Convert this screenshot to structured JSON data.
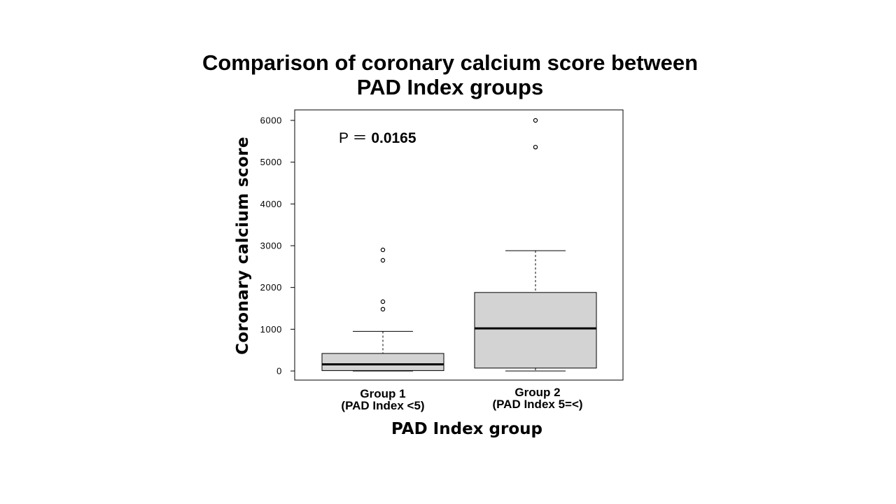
{
  "chart_data": {
    "type": "box",
    "title_lines": [
      "Comparison of coronary calcium score between",
      "PAD Index groups"
    ],
    "xlabel": "PAD Index group",
    "ylabel": "Coronary calcium score",
    "ylim": [
      -200,
      6250
    ],
    "yticks": [
      0,
      1000,
      2000,
      3000,
      4000,
      5000,
      6000
    ],
    "annotation": {
      "label": "P ＝",
      "value": "0.0165"
    },
    "groups": [
      {
        "label_line1": "Group 1",
        "label_line2": "(PAD Index <5)",
        "whisker_low": 0,
        "q1": 10,
        "median": 160,
        "q3": 420,
        "whisker_high": 950,
        "outliers": [
          1480,
          1660,
          2650,
          2900
        ]
      },
      {
        "label_line1": "Group 2",
        "label_line2": "(PAD Index 5=<)",
        "whisker_low": 0,
        "q1": 70,
        "median": 1020,
        "q3": 1880,
        "whisker_high": 2880,
        "outliers": [
          5360,
          6000
        ]
      }
    ],
    "colors": {
      "box_fill": "#d3d3d3",
      "stroke": "#000000"
    }
  }
}
